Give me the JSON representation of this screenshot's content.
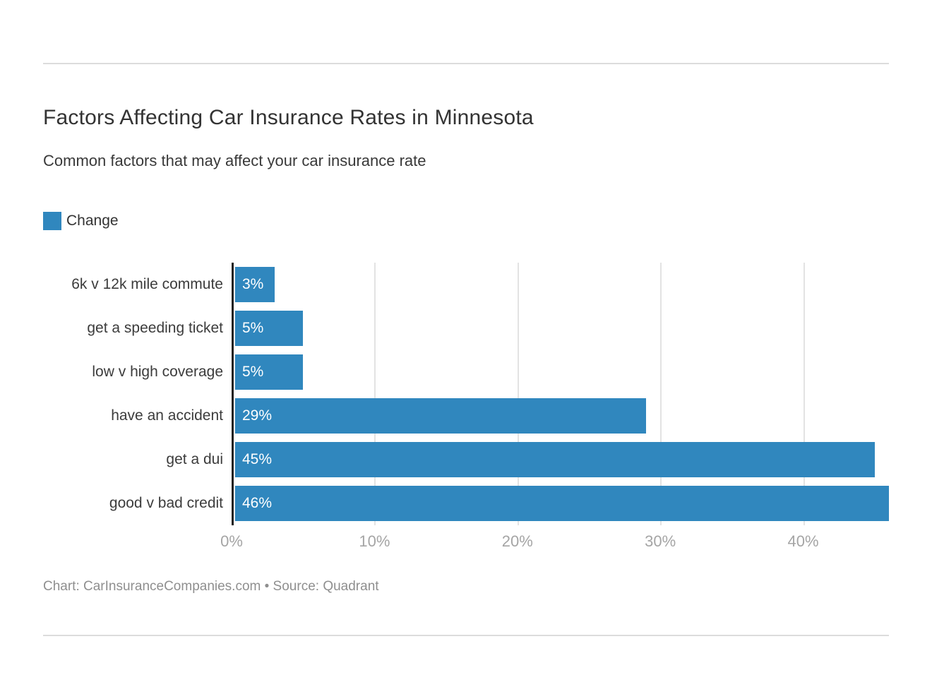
{
  "chart_data": {
    "type": "bar",
    "orientation": "horizontal",
    "title": "Factors Affecting Car Insurance Rates in Minnesota",
    "subtitle": "Common factors that may affect your car insurance rate",
    "legend_position": "top-left",
    "categories": [
      "6k v 12k mile commute",
      "get a speeding ticket",
      "low v high coverage",
      "have an accident",
      "get a dui",
      "good v bad credit"
    ],
    "series": [
      {
        "name": "Change",
        "color": "#3087BE",
        "values": [
          3,
          5,
          5,
          29,
          45,
          46
        ],
        "value_labels": [
          "3%",
          "5%",
          "5%",
          "29%",
          "45%",
          "46%"
        ]
      }
    ],
    "x_axis": {
      "min": 0,
      "max": 46,
      "ticks": [
        {
          "value": 0,
          "label": "0%"
        },
        {
          "value": 10,
          "label": "10%"
        },
        {
          "value": 20,
          "label": "20%"
        },
        {
          "value": 30,
          "label": "30%"
        },
        {
          "value": 40,
          "label": "40%"
        }
      ]
    },
    "grid": true,
    "xlabel": "",
    "ylabel": ""
  },
  "footer": {
    "text": "Chart: CarInsuranceCompanies.com • Source: Quadrant"
  },
  "colors": {
    "bar_accent": "#3087BE",
    "axis_line": "#1F1F1F",
    "gridline": "#E3E3E3",
    "divider": "#DCDCDC",
    "tick_label": "#A5A5A5"
  }
}
